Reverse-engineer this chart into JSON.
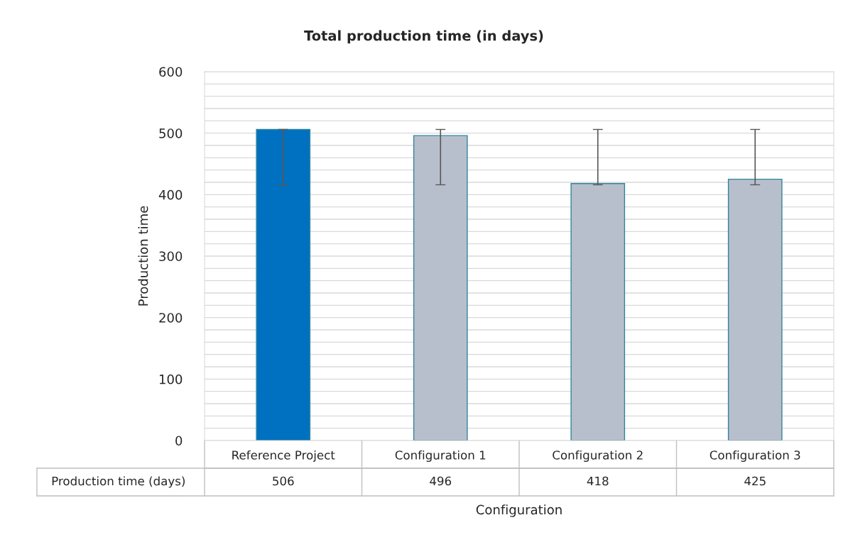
{
  "chart_data": {
    "type": "bar",
    "title": "Total production time (in days)",
    "xlabel": "Configuration",
    "ylabel": "Production time",
    "categories": [
      "Reference Project",
      "Configuration 1",
      "Configuration 2",
      "Configuration 3"
    ],
    "series": [
      {
        "name": "Production time (days)",
        "values": [
          506,
          496,
          418,
          425
        ],
        "colors": [
          "#0070c0",
          "#b8bfcc",
          "#b8bfcc",
          "#b8bfcc"
        ],
        "errors": [
          [
            416,
            506
          ],
          [
            416,
            506
          ],
          [
            416,
            506
          ],
          [
            416,
            506
          ]
        ]
      }
    ],
    "data_labels": true,
    "ylim": [
      0,
      600
    ],
    "yticks": [
      0,
      {
        "value": 20,
        "label": null
      },
      {
        "value": 40,
        "label": null
      },
      {
        "value": 60,
        "label": null
      },
      {
        "value": 80,
        "label": null
      },
      100,
      {
        "value": 120,
        "label": null
      },
      {
        "value": 140,
        "label": null
      },
      {
        "value": 160,
        "label": null
      },
      {
        "value": 180,
        "label": null
      },
      200,
      {
        "value": 220,
        "label": null
      },
      {
        "value": 240,
        "label": null
      },
      {
        "value": 260,
        "label": null
      },
      {
        "value": 280,
        "label": null
      },
      300,
      {
        "value": 320,
        "label": null
      },
      {
        "value": 340,
        "label": null
      },
      {
        "value": 360,
        "label": null
      },
      {
        "value": 380,
        "label": null
      },
      400,
      {
        "value": 420,
        "label": null
      },
      {
        "value": 440,
        "label": null
      },
      {
        "value": 460,
        "label": null
      },
      {
        "value": 480,
        "label": null
      },
      500,
      {
        "value": 520,
        "label": null
      },
      {
        "value": 540,
        "label": null
      },
      {
        "value": 560,
        "label": null
      },
      {
        "value": 580,
        "label": null
      },
      600
    ],
    "grid": "y",
    "legend": "bottom"
  }
}
